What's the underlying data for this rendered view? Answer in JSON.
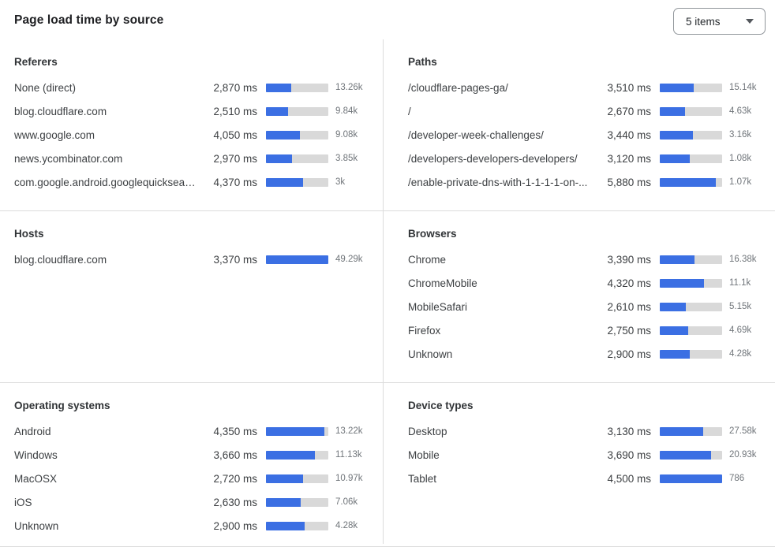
{
  "header": {
    "title": "Page load time by source",
    "items_select": {
      "value": "5 items"
    }
  },
  "colors": {
    "bar_fill": "#3B6FE3",
    "bar_track": "#D9D9D9",
    "divider": "#DCDCDC"
  },
  "panels": [
    {
      "id": "referers",
      "title": "Referers",
      "rows": [
        {
          "label": "None (direct)",
          "ms": "2,870 ms",
          "count": "13.26k",
          "bar_pct": 40
        },
        {
          "label": "blog.cloudflare.com",
          "ms": "2,510 ms",
          "count": "9.84k",
          "bar_pct": 35
        },
        {
          "label": "www.google.com",
          "ms": "4,050 ms",
          "count": "9.08k",
          "bar_pct": 55
        },
        {
          "label": "news.ycombinator.com",
          "ms": "2,970 ms",
          "count": "3.85k",
          "bar_pct": 42
        },
        {
          "label": "com.google.android.googlequicksearc...",
          "ms": "4,370 ms",
          "count": "3k",
          "bar_pct": 60
        }
      ]
    },
    {
      "id": "paths",
      "title": "Paths",
      "rows": [
        {
          "label": "/cloudflare-pages-ga/",
          "ms": "3,510 ms",
          "count": "15.14k",
          "bar_pct": 55
        },
        {
          "label": "/",
          "ms": "2,670 ms",
          "count": "4.63k",
          "bar_pct": 41
        },
        {
          "label": "/developer-week-challenges/",
          "ms": "3,440 ms",
          "count": "3.16k",
          "bar_pct": 53
        },
        {
          "label": "/developers-developers-developers/",
          "ms": "3,120 ms",
          "count": "1.08k",
          "bar_pct": 48
        },
        {
          "label": "/enable-private-dns-with-1-1-1-1-on-...",
          "ms": "5,880 ms",
          "count": "1.07k",
          "bar_pct": 90
        }
      ]
    },
    {
      "id": "hosts",
      "title": "Hosts",
      "rows": [
        {
          "label": "blog.cloudflare.com",
          "ms": "3,370 ms",
          "count": "49.29k",
          "bar_pct": 100
        }
      ]
    },
    {
      "id": "browsers",
      "title": "Browsers",
      "rows": [
        {
          "label": "Chrome",
          "ms": "3,390 ms",
          "count": "16.38k",
          "bar_pct": 56
        },
        {
          "label": "ChromeMobile",
          "ms": "4,320 ms",
          "count": "11.1k",
          "bar_pct": 71
        },
        {
          "label": "MobileSafari",
          "ms": "2,610 ms",
          "count": "5.15k",
          "bar_pct": 42
        },
        {
          "label": "Firefox",
          "ms": "2,750 ms",
          "count": "4.69k",
          "bar_pct": 45
        },
        {
          "label": "Unknown",
          "ms": "2,900 ms",
          "count": "4.28k",
          "bar_pct": 48
        }
      ]
    },
    {
      "id": "operating-systems",
      "title": "Operating systems",
      "rows": [
        {
          "label": "Android",
          "ms": "4,350 ms",
          "count": "13.22k",
          "bar_pct": 94
        },
        {
          "label": "Windows",
          "ms": "3,660 ms",
          "count": "11.13k",
          "bar_pct": 78
        },
        {
          "label": "MacOSX",
          "ms": "2,720 ms",
          "count": "10.97k",
          "bar_pct": 59
        },
        {
          "label": "iOS",
          "ms": "2,630 ms",
          "count": "7.06k",
          "bar_pct": 56
        },
        {
          "label": "Unknown",
          "ms": "2,900 ms",
          "count": "4.28k",
          "bar_pct": 62
        }
      ]
    },
    {
      "id": "device-types",
      "title": "Device types",
      "rows": [
        {
          "label": "Desktop",
          "ms": "3,130 ms",
          "count": "27.58k",
          "bar_pct": 70
        },
        {
          "label": "Mobile",
          "ms": "3,690 ms",
          "count": "20.93k",
          "bar_pct": 82
        },
        {
          "label": "Tablet",
          "ms": "4,500 ms",
          "count": "786",
          "bar_pct": 100
        }
      ]
    }
  ],
  "chart_data": [
    {
      "type": "bar",
      "title": "Referers",
      "categories": [
        "None (direct)",
        "blog.cloudflare.com",
        "www.google.com",
        "news.ycombinator.com",
        "com.google.android.googlequicksearc..."
      ],
      "values": [
        2870,
        2510,
        4050,
        2970,
        4370
      ],
      "value_unit": "ms",
      "counts": [
        13260,
        9840,
        9080,
        3850,
        3000
      ],
      "bar_scale_max_ms": 7200
    },
    {
      "type": "bar",
      "title": "Paths",
      "categories": [
        "/cloudflare-pages-ga/",
        "/",
        "/developer-week-challenges/",
        "/developers-developers-developers/",
        "/enable-private-dns-with-1-1-1-1-on-..."
      ],
      "values": [
        3510,
        2670,
        3440,
        3120,
        5880
      ],
      "value_unit": "ms",
      "counts": [
        15140,
        4630,
        3160,
        1080,
        1070
      ],
      "bar_scale_max_ms": 6500
    },
    {
      "type": "bar",
      "title": "Hosts",
      "categories": [
        "blog.cloudflare.com"
      ],
      "values": [
        3370
      ],
      "value_unit": "ms",
      "counts": [
        49290
      ],
      "bar_scale_max_ms": 3370
    },
    {
      "type": "bar",
      "title": "Browsers",
      "categories": [
        "Chrome",
        "ChromeMobile",
        "MobileSafari",
        "Firefox",
        "Unknown"
      ],
      "values": [
        3390,
        4320,
        2610,
        2750,
        2900
      ],
      "value_unit": "ms",
      "counts": [
        16380,
        11100,
        5150,
        4690,
        4280
      ],
      "bar_scale_max_ms": 6100
    },
    {
      "type": "bar",
      "title": "Operating systems",
      "categories": [
        "Android",
        "Windows",
        "MacOSX",
        "iOS",
        "Unknown"
      ],
      "values": [
        4350,
        3660,
        2720,
        2630,
        2900
      ],
      "value_unit": "ms",
      "counts": [
        13220,
        11130,
        10970,
        7060,
        4280
      ],
      "bar_scale_max_ms": 4650
    },
    {
      "type": "bar",
      "title": "Device types",
      "categories": [
        "Desktop",
        "Mobile",
        "Tablet"
      ],
      "values": [
        3130,
        3690,
        4500
      ],
      "value_unit": "ms",
      "counts": [
        27580,
        20930,
        786
      ],
      "bar_scale_max_ms": 4500
    }
  ]
}
